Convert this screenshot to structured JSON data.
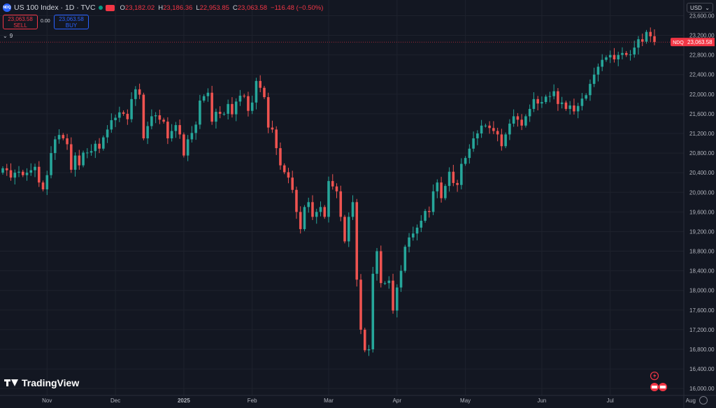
{
  "header": {
    "logo_text": "NDQ",
    "title": "US 100 Index · 1D · TVC",
    "ohlc": {
      "o_label": "O",
      "o": "23,182.02",
      "h_label": "H",
      "h": "23,186.36",
      "l_label": "L",
      "l": "22,953.85",
      "c_label": "C",
      "c": "23,063.58",
      "change": "−116.48 (−0.50%)"
    },
    "sell_price": "23,063.58",
    "sell_label": "SELL",
    "spread": "0.00",
    "buy_price": "23,063.58",
    "buy_label": "BUY",
    "indicators_count": "9",
    "currency": "USD"
  },
  "brand": "TradingView",
  "colors": {
    "background": "#131722",
    "up": "#26a69a",
    "down": "#ef5350",
    "grid": "#1e222d",
    "axis_text": "#b2b5be",
    "last_price": "#f23645"
  },
  "chart_data": {
    "type": "candlestick",
    "x_tick_labels": [
      "Nov",
      "Dec",
      "2025",
      "Feb",
      "Mar",
      "Apr",
      "May",
      "Jun",
      "Jul",
      "Aug"
    ],
    "y_tick_labels": [
      "23,600.00",
      "23,200.00",
      "22,800.00",
      "22,400.00",
      "22,000.00",
      "21,600.00",
      "21,200.00",
      "20,800.00",
      "20,400.00",
      "20,000.00",
      "19,600.00",
      "19,200.00",
      "18,800.00",
      "18,400.00",
      "18,000.00",
      "17,600.00",
      "17,200.00",
      "16,800.00",
      "16,400.00",
      "16,000.00"
    ],
    "ylim": [
      15860,
      23920
    ],
    "last_price": {
      "symbol": "NDQ",
      "value": 23063.58,
      "label": "23,063.58"
    },
    "grid": true,
    "closes": [
      20490,
      20450,
      20300,
      20400,
      20420,
      20350,
      20400,
      20450,
      20520,
      20200,
      20060,
      20350,
      20800,
      21080,
      21170,
      21100,
      20980,
      20460,
      20750,
      20550,
      20810,
      20810,
      20840,
      20990,
      20890,
      21120,
      21280,
      21470,
      21520,
      21630,
      21600,
      21490,
      21900,
      22100,
      21990,
      21100,
      21350,
      21550,
      21570,
      21480,
      21440,
      21100,
      21250,
      21370,
      21180,
      20750,
      21080,
      21210,
      21380,
      21870,
      21960,
      22030,
      21440,
      21640,
      21600,
      21600,
      21800,
      21590,
      21850,
      21970,
      21960,
      21660,
      21830,
      22270,
      22130,
      21940,
      21320,
      21280,
      20900,
      20550,
      20410,
      20300,
      20050,
      19600,
      19250,
      19700,
      19800,
      19500,
      19600,
      19700,
      19500,
      20230,
      20120,
      20020,
      19500,
      19000,
      19500,
      19800,
      18220,
      17200,
      16780,
      16800,
      18340,
      18800,
      18150,
      18150,
      18200,
      17590,
      18060,
      18400,
      18890,
      19080,
      19160,
      19280,
      19420,
      19620,
      19600,
      20020,
      20200,
      19880,
      20130,
      20420,
      20190,
      20150,
      20580,
      20700,
      20890,
      21100,
      21200,
      21360,
      21360,
      21310,
      21250,
      21180,
      20940,
      21180,
      21400,
      21550,
      21480,
      21360,
      21550,
      21700,
      21900,
      21810,
      21840,
      21950,
      21960,
      22060,
      21800,
      21830,
      21700,
      21770,
      21650,
      21760,
      21910,
      21980,
      22210,
      22400,
      22560,
      22700,
      22750,
      22800,
      22710,
      22800,
      22840,
      22800,
      22810,
      22950,
      23120,
      23070,
      23270,
      23180,
      23063.58
    ],
    "opens": [
      20400,
      20490,
      20450,
      20300,
      20400,
      20420,
      20350,
      20400,
      20450,
      20520,
      20200,
      20060,
      20350,
      20800,
      21080,
      21170,
      21100,
      20980,
      20460,
      20750,
      20550,
      20810,
      20810,
      20840,
      20990,
      20890,
      21120,
      21280,
      21470,
      21520,
      21630,
      21600,
      21490,
      21900,
      22100,
      21990,
      21100,
      21350,
      21550,
      21570,
      21480,
      21440,
      21100,
      21250,
      21370,
      21180,
      20750,
      21080,
      21210,
      21380,
      21870,
      21960,
      22030,
      21440,
      21640,
      21600,
      21600,
      21800,
      21590,
      21850,
      21970,
      21960,
      21660,
      21830,
      22270,
      22130,
      21940,
      21320,
      21280,
      20900,
      20550,
      20410,
      20300,
      20050,
      19600,
      19250,
      19700,
      19800,
      19500,
      19600,
      19700,
      19500,
      20230,
      20120,
      20020,
      19500,
      19000,
      19500,
      19800,
      18220,
      17200,
      16780,
      16800,
      18340,
      18800,
      18150,
      18150,
      18200,
      17590,
      18060,
      18400,
      18890,
      19080,
      19160,
      19280,
      19420,
      19620,
      19600,
      20020,
      20200,
      19880,
      20130,
      20420,
      20190,
      20150,
      20580,
      20700,
      20890,
      21100,
      21200,
      21360,
      21360,
      21310,
      21250,
      21180,
      20940,
      21180,
      21400,
      21550,
      21480,
      21360,
      21550,
      21700,
      21900,
      21810,
      21840,
      21950,
      21960,
      22060,
      21800,
      21830,
      21700,
      21770,
      21650,
      21760,
      21910,
      21980,
      22210,
      22400,
      22560,
      22700,
      22750,
      22800,
      22710,
      22800,
      22840,
      22800,
      22810,
      22950,
      23120,
      23070,
      23270,
      23182.02
    ]
  }
}
